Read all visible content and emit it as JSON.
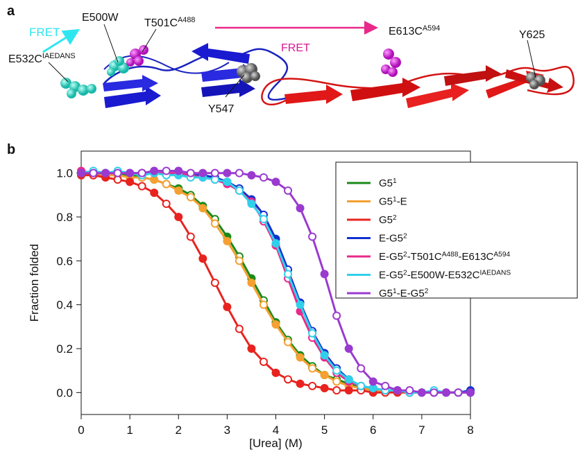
{
  "structure": {
    "panel_label": "a",
    "fret_left": "FRET",
    "fret_right": "FRET",
    "labels": [
      [
        {
          "text": "E500W"
        }
      ],
      [
        {
          "text": "T501C"
        },
        {
          "sup": "A488"
        }
      ],
      [
        {
          "text": "E613C"
        },
        {
          "sup": "A594"
        }
      ],
      [
        {
          "text": "Y625"
        }
      ],
      [
        {
          "text": "E532C"
        },
        {
          "sup": "IAEDANS"
        }
      ],
      [
        {
          "text": "Y547"
        }
      ]
    ]
  },
  "panel_b_label": "b",
  "chart_data": {
    "type": "line",
    "x_label": "[Urea] (M)",
    "y_label": "Fraction folded",
    "x": [
      0,
      0.25,
      0.5,
      0.75,
      1,
      1.25,
      1.5,
      1.75,
      2,
      2.25,
      2.5,
      2.75,
      3,
      3.25,
      3.5,
      3.75,
      4,
      4.25,
      4.5,
      4.75,
      5,
      5.25,
      5.5,
      5.75,
      6,
      6.25,
      6.5,
      6.75,
      7,
      7.25,
      7.5,
      7.75,
      8
    ],
    "series": [
      {
        "name": [
          {
            "text": "G5"
          },
          {
            "sup": "1"
          }
        ],
        "color": "#1a8a1a",
        "values": [
          1.0,
          1.0,
          0.99,
          0.99,
          0.99,
          0.98,
          0.97,
          0.95,
          0.93,
          0.9,
          0.85,
          0.79,
          0.71,
          0.62,
          0.52,
          0.42,
          0.32,
          0.24,
          0.17,
          0.12,
          0.08,
          0.06,
          0.04,
          0.02,
          0.02,
          0.01,
          0.01,
          0.0,
          0.0,
          0.0,
          0.0,
          0.0,
          0.0
        ]
      },
      {
        "name": [
          {
            "text": "G5"
          },
          {
            "sup": "1"
          },
          {
            "text": "-E"
          }
        ],
        "color": "#f5a030",
        "values": [
          1.0,
          1.0,
          0.99,
          0.99,
          0.98,
          0.98,
          0.97,
          0.95,
          0.92,
          0.89,
          0.84,
          0.77,
          0.69,
          0.6,
          0.5,
          0.4,
          0.31,
          0.23,
          0.16,
          0.11,
          0.08,
          0.05,
          0.03,
          0.02,
          0.01,
          0.01,
          0.01,
          0.0,
          0.0,
          0.0,
          0.0,
          0.0,
          0.0
        ]
      },
      {
        "name": [
          {
            "text": "G5"
          },
          {
            "sup": "2"
          }
        ],
        "color": "#e8231f",
        "values": [
          0.99,
          0.99,
          0.98,
          0.97,
          0.96,
          0.94,
          0.91,
          0.86,
          0.8,
          0.71,
          0.61,
          0.5,
          0.39,
          0.29,
          0.2,
          0.14,
          0.09,
          0.06,
          0.04,
          0.03,
          0.02,
          0.01,
          0.01,
          0.01,
          0.0,
          0.0,
          0.0,
          0.0,
          0.0,
          0.0,
          0.0,
          0.0,
          0.0
        ]
      },
      {
        "name": [
          {
            "text": "E-G5"
          },
          {
            "sup": "2"
          }
        ],
        "color": "#1030d0",
        "values": [
          1.0,
          1.0,
          1.0,
          1.0,
          1.0,
          1.0,
          1.0,
          1.0,
          1.0,
          0.99,
          0.99,
          0.98,
          0.96,
          0.93,
          0.88,
          0.81,
          0.7,
          0.56,
          0.41,
          0.28,
          0.18,
          0.11,
          0.06,
          0.03,
          0.02,
          0.01,
          0.01,
          0.0,
          0.0,
          0.0,
          0.0,
          0.0,
          0.01
        ]
      },
      {
        "name": [
          {
            "text": "E-G5"
          },
          {
            "sup": "2"
          },
          {
            "text": "-T501C"
          },
          {
            "sup": "A488"
          },
          {
            "text": "-E613C"
          },
          {
            "sup": "A594"
          }
        ],
        "color": "#e8288a",
        "values": [
          1.01,
          1.0,
          1.0,
          1.0,
          1.0,
          1.0,
          1.0,
          1.0,
          1.0,
          0.99,
          0.98,
          0.97,
          0.95,
          0.92,
          0.87,
          0.78,
          0.67,
          0.52,
          0.37,
          0.25,
          0.16,
          0.09,
          0.05,
          0.03,
          0.02,
          0.01,
          0.01,
          0.0,
          0.0,
          0.0,
          0.0,
          0.0,
          0.0
        ]
      },
      {
        "name": [
          {
            "text": "E-G5"
          },
          {
            "sup": "2"
          },
          {
            "text": "-E500W-E532C"
          },
          {
            "sup": "IAEDANS"
          }
        ],
        "color": "#30d0ea",
        "values": [
          1.0,
          1.01,
          1.0,
          1.01,
          1.0,
          0.99,
          1.0,
          0.99,
          0.99,
          0.98,
          0.98,
          0.97,
          0.96,
          0.92,
          0.86,
          0.79,
          0.68,
          0.54,
          0.4,
          0.27,
          0.17,
          0.1,
          0.06,
          0.03,
          0.02,
          0.01,
          0.01,
          0.0,
          0.0,
          0.01,
          0.0,
          0.0,
          0.0
        ]
      },
      {
        "name": [
          {
            "text": "G5"
          },
          {
            "sup": "1"
          },
          {
            "text": "-E-G5"
          },
          {
            "sup": "2"
          }
        ],
        "color": "#9a3ad0",
        "values": [
          1.0,
          1.0,
          1.0,
          1.0,
          1.0,
          1.0,
          1.01,
          1.01,
          1.01,
          1.0,
          1.0,
          1.0,
          1.0,
          1.0,
          0.99,
          0.98,
          0.96,
          0.92,
          0.84,
          0.71,
          0.54,
          0.35,
          0.2,
          0.11,
          0.05,
          0.03,
          0.01,
          0.01,
          0.0,
          0.0,
          0.0,
          0.0,
          0.0
        ]
      }
    ],
    "xlim": [
      0,
      8
    ],
    "ylim": [
      -0.1,
      1.1
    ],
    "xticks": [
      0,
      1,
      2,
      3,
      4,
      5,
      6,
      7,
      8
    ],
    "yticks": [
      {
        "value": 0,
        "label": "0.0"
      },
      {
        "value": 0.2,
        "label": "0.2"
      },
      {
        "value": 0.4,
        "label": "0.4"
      },
      {
        "value": 0.6,
        "label": "0.6"
      },
      {
        "value": 0.8,
        "label": "0.8"
      },
      {
        "value": 1,
        "label": "1.0"
      }
    ],
    "legend": "upper right"
  }
}
